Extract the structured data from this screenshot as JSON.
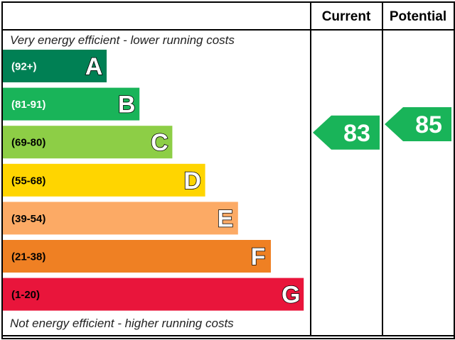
{
  "header": {
    "current_label": "Current",
    "potential_label": "Potential"
  },
  "notes": {
    "top": "Very energy efficient - lower running costs",
    "bottom": "Not energy efficient - higher running costs"
  },
  "chart_data": {
    "type": "bar",
    "categories": [
      "A",
      "B",
      "C",
      "D",
      "E",
      "F",
      "G"
    ],
    "ranges": [
      "(92+)",
      "(81-91)",
      "(69-80)",
      "(55-68)",
      "(39-54)",
      "(21-38)",
      "(1-20)"
    ],
    "range_min": [
      92,
      81,
      69,
      55,
      39,
      21,
      1
    ],
    "colors": [
      "#008054",
      "#19b459",
      "#8dce46",
      "#ffd500",
      "#fcaa65",
      "#ef8023",
      "#e9153b"
    ],
    "range_text_colors": [
      "#ffffff",
      "#ffffff",
      "#000000",
      "#000000",
      "#000000",
      "#000000",
      "#000000"
    ],
    "current": {
      "value": 83,
      "band": "B",
      "color": "#19b459"
    },
    "potential": {
      "value": 85,
      "band": "B",
      "color": "#19b459"
    }
  }
}
